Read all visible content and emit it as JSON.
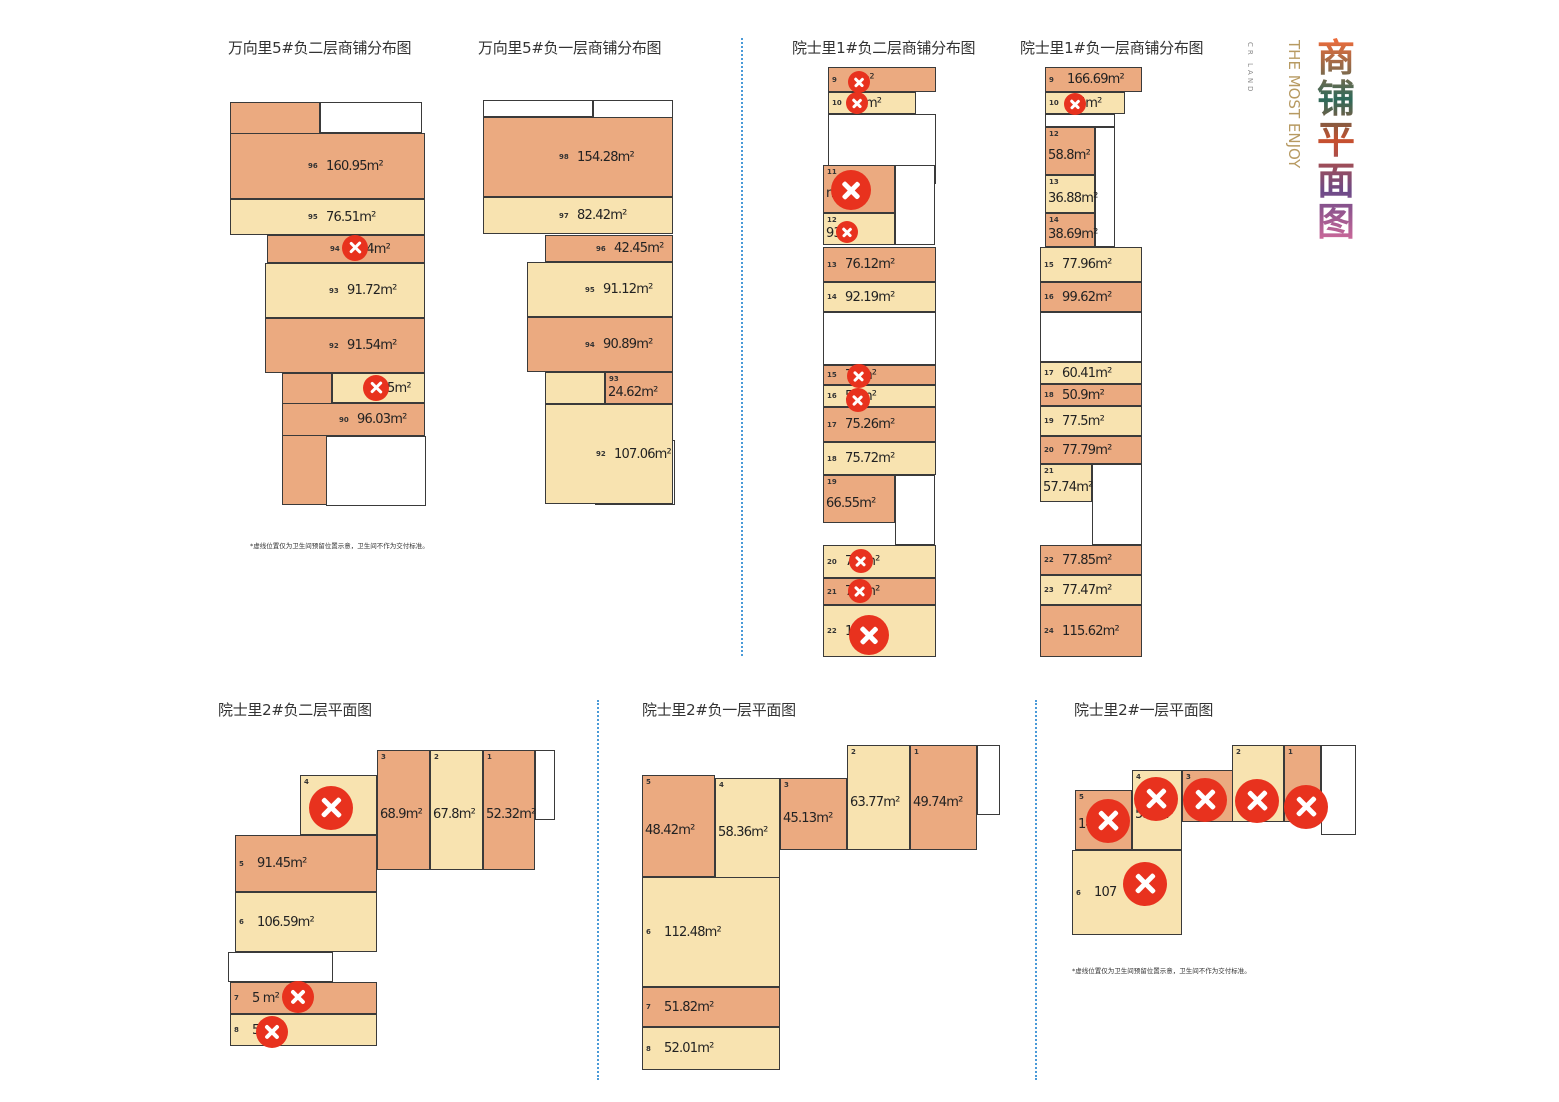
{
  "brand": {
    "title": "商铺平面图",
    "slogan": "THE MOST ENJOY",
    "company": "CR LAND"
  },
  "colors": {
    "orange": "#EBAA80",
    "yellow": "#F8E3B0",
    "sold_mark": "#E8321E",
    "divider": "#4a9ad8"
  },
  "notes": [
    "*虚线位置仅为卫生间预留位置示意，卫生间不作为交付标准。",
    "*虚线位置仅为卫生间预留位置示意，卫生间不作为交付标准。"
  ],
  "plans": [
    {
      "title": "万向里5#负二层商铺分布图",
      "rooms": [
        {
          "no": "96",
          "area": "160.95m²",
          "tone": "orange",
          "sold": false
        },
        {
          "no": "95",
          "area": "76.51m²",
          "tone": "yellow",
          "sold": false
        },
        {
          "no": "94",
          "area": "5.74m²",
          "tone": "orange",
          "sold": true
        },
        {
          "no": "93",
          "area": "91.72m²",
          "tone": "yellow",
          "sold": false
        },
        {
          "no": "92",
          "area": "91.54m²",
          "tone": "orange",
          "sold": false
        },
        {
          "no": "91",
          "area": "5m²",
          "tone": "yellow",
          "sold": true
        },
        {
          "no": "90",
          "area": "96.03m²",
          "tone": "orange",
          "sold": false
        }
      ]
    },
    {
      "title": "万向里5#负一层商铺分布图",
      "rooms": [
        {
          "no": "98",
          "area": "154.28m²",
          "tone": "orange",
          "sold": false
        },
        {
          "no": "97",
          "area": "82.42m²",
          "tone": "yellow",
          "sold": false
        },
        {
          "no": "96",
          "area": "42.45m²",
          "tone": "orange",
          "sold": false
        },
        {
          "no": "95",
          "area": "91.12m²",
          "tone": "yellow",
          "sold": false
        },
        {
          "no": "94",
          "area": "90.89m²",
          "tone": "orange",
          "sold": false
        },
        {
          "no": "93",
          "area": "24.62m²",
          "tone": "orange",
          "sold": false
        },
        {
          "no": "92",
          "area": "107.06m²",
          "tone": "yellow",
          "sold": false
        }
      ]
    },
    {
      "title": "院士里1#负二层商铺分布图",
      "rooms": [
        {
          "no": "9",
          "area": "6m²",
          "tone": "orange",
          "sold": true
        },
        {
          "no": "10",
          "area": "37m²",
          "tone": "yellow",
          "sold": true
        },
        {
          "no": "11",
          "area": "n²",
          "tone": "orange",
          "sold": true
        },
        {
          "no": "12",
          "area": "93m²",
          "tone": "yellow",
          "sold": true
        },
        {
          "no": "13",
          "area": "76.12m²",
          "tone": "orange",
          "sold": false
        },
        {
          "no": "14",
          "area": "92.19m²",
          "tone": "yellow",
          "sold": false
        },
        {
          "no": "15",
          "area": "77m²",
          "tone": "orange",
          "sold": true
        },
        {
          "no": "16",
          "area": "57m²",
          "tone": "yellow",
          "sold": true
        },
        {
          "no": "17",
          "area": "75.26m²",
          "tone": "orange",
          "sold": false
        },
        {
          "no": "18",
          "area": "75.72m²",
          "tone": "yellow",
          "sold": false
        },
        {
          "no": "19",
          "area": "66.55m²",
          "tone": "orange",
          "sold": false
        },
        {
          "no": "20",
          "area": "76 m²",
          "tone": "yellow",
          "sold": true
        },
        {
          "no": "21",
          "area": "75 m²",
          "tone": "orange",
          "sold": true
        },
        {
          "no": "22",
          "area": "10",
          "tone": "yellow",
          "sold": true
        }
      ]
    },
    {
      "title": "院士里1#负一层商铺分布图",
      "rooms": [
        {
          "no": "9",
          "area": "166.69m²",
          "tone": "orange",
          "sold": false
        },
        {
          "no": "10",
          "area": "3 4m²",
          "tone": "yellow",
          "sold": true
        },
        {
          "no": "12",
          "area": "58.8m²",
          "tone": "orange",
          "sold": false
        },
        {
          "no": "13",
          "area": "36.88m²",
          "tone": "yellow",
          "sold": false
        },
        {
          "no": "14",
          "area": "38.69m²",
          "tone": "orange",
          "sold": false
        },
        {
          "no": "15",
          "area": "77.96m²",
          "tone": "yellow",
          "sold": false
        },
        {
          "no": "16",
          "area": "99.62m²",
          "tone": "orange",
          "sold": false
        },
        {
          "no": "17",
          "area": "60.41m²",
          "tone": "yellow",
          "sold": false
        },
        {
          "no": "18",
          "area": "50.9m²",
          "tone": "orange",
          "sold": false
        },
        {
          "no": "19",
          "area": "77.5m²",
          "tone": "yellow",
          "sold": false
        },
        {
          "no": "20",
          "area": "77.79m²",
          "tone": "orange",
          "sold": false
        },
        {
          "no": "21",
          "area": "57.74m²",
          "tone": "yellow",
          "sold": false
        },
        {
          "no": "22",
          "area": "77.85m²",
          "tone": "orange",
          "sold": false
        },
        {
          "no": "23",
          "area": "77.47m²",
          "tone": "yellow",
          "sold": false
        },
        {
          "no": "24",
          "area": "115.62m²",
          "tone": "orange",
          "sold": false
        }
      ]
    },
    {
      "title": "院士里2#负二层平面图",
      "rooms": [
        {
          "no": "4",
          "area": "",
          "tone": "yellow",
          "sold": true
        },
        {
          "no": "3",
          "area": "68.9m²",
          "tone": "orange",
          "sold": false
        },
        {
          "no": "2",
          "area": "67.8m²",
          "tone": "yellow",
          "sold": false
        },
        {
          "no": "1",
          "area": "52.32m²",
          "tone": "orange",
          "sold": false
        },
        {
          "no": "5",
          "area": "91.45m²",
          "tone": "orange",
          "sold": false
        },
        {
          "no": "6",
          "area": "106.59m²",
          "tone": "yellow",
          "sold": false
        },
        {
          "no": "7",
          "area": "5 m²",
          "tone": "orange",
          "sold": true
        },
        {
          "no": "8",
          "area": "59m²",
          "tone": "yellow",
          "sold": true
        }
      ]
    },
    {
      "title": "院士里2#负一层平面图",
      "rooms": [
        {
          "no": "5",
          "area": "48.42m²",
          "tone": "orange",
          "sold": false
        },
        {
          "no": "4",
          "area": "58.36m²",
          "tone": "yellow",
          "sold": false
        },
        {
          "no": "3",
          "area": "45.13m²",
          "tone": "orange",
          "sold": false
        },
        {
          "no": "2",
          "area": "63.77m²",
          "tone": "yellow",
          "sold": false
        },
        {
          "no": "1",
          "area": "49.74m²",
          "tone": "orange",
          "sold": false
        },
        {
          "no": "6",
          "area": "112.48m²",
          "tone": "yellow",
          "sold": false
        },
        {
          "no": "7",
          "area": "51.82m²",
          "tone": "orange",
          "sold": false
        },
        {
          "no": "8",
          "area": "52.01m²",
          "tone": "yellow",
          "sold": false
        }
      ]
    },
    {
      "title": "院士里2#一层平面图",
      "rooms": [
        {
          "no": "5",
          "area": "14",
          "tone": "orange",
          "sold": true
        },
        {
          "no": "4",
          "area": "53.  m²",
          "tone": "yellow",
          "sold": true
        },
        {
          "no": "3",
          "area": "",
          "tone": "orange",
          "sold": true
        },
        {
          "no": "2",
          "area": "",
          "tone": "yellow",
          "sold": true
        },
        {
          "no": "1",
          "area": "",
          "tone": "orange",
          "sold": true
        },
        {
          "no": "6",
          "area": "107",
          "tone": "yellow",
          "sold": true
        }
      ]
    }
  ]
}
